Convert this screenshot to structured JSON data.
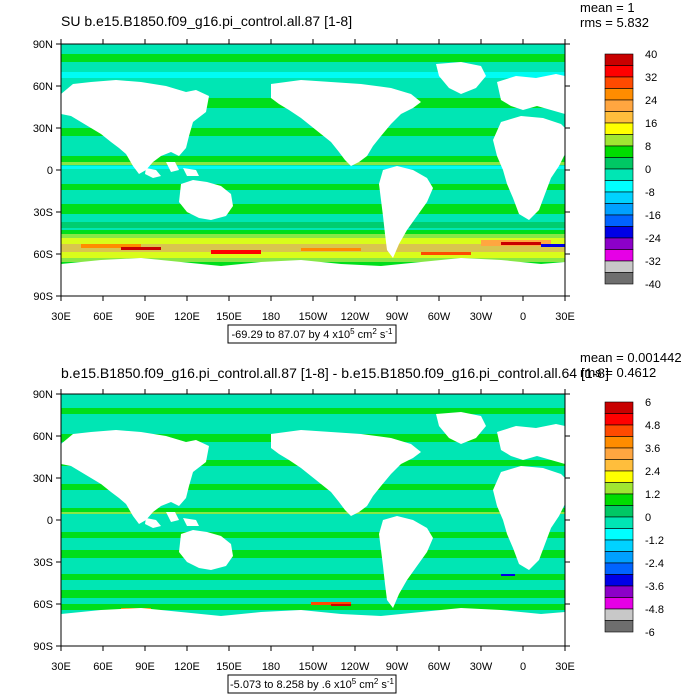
{
  "panels": [
    {
      "title": "SU b.e15.B1850.f09_g16.pi_control.all.87 [1-8]",
      "stats": {
        "mean": "mean = 1",
        "rms": "rms = 5.832"
      },
      "range_label_pre": "-69.29 to 87.07 by 4 x10",
      "range_exp": "5",
      "range_unit": " cm",
      "range_unit_exp": "2",
      "range_tail": " s",
      "range_tail_exp": "-1",
      "colorbar": {
        "labels": [
          "40",
          "32",
          "24",
          "16",
          "8",
          "0",
          "-8",
          "-16",
          "-24",
          "-32",
          "-40"
        ],
        "colors": [
          "#c80000",
          "#ff0000",
          "#ff4a00",
          "#ff8c00",
          "#ffa640",
          "#ffbe3c",
          "#ffff00",
          "#a0e632",
          "#00dc00",
          "#00c864",
          "#00e6b4",
          "#00ffff",
          "#00d2ff",
          "#00a0ff",
          "#0064ff",
          "#0000e6",
          "#8c00c8",
          "#e600e6",
          "#c8c8c8",
          "#6e6e6e"
        ]
      }
    },
    {
      "title": "b.e15.B1850.f09_g16.pi_control.all.87 [1-8] - b.e15.B1850.f09_g16.pi_control.all.64 [1-8]",
      "stats": {
        "mean": "mean = 0.001442",
        "rms": "rms = 0.4612"
      },
      "range_label_pre": "-5.073 to 8.258 by .6 x10",
      "range_exp": "5",
      "range_unit": " cm",
      "range_unit_exp": "2",
      "range_tail": " s",
      "range_tail_exp": "-1",
      "colorbar": {
        "labels": [
          "6",
          "4.8",
          "3.6",
          "2.4",
          "1.2",
          "0",
          "-1.2",
          "-2.4",
          "-3.6",
          "-4.8",
          "-6"
        ],
        "colors": [
          "#c80000",
          "#ff0000",
          "#ff4a00",
          "#ff8c00",
          "#ffa640",
          "#ffbe3c",
          "#ffff00",
          "#a0e632",
          "#00dc00",
          "#00c864",
          "#00e6b4",
          "#00ffff",
          "#00d2ff",
          "#00a0ff",
          "#0064ff",
          "#0000e6",
          "#8c00c8",
          "#e600e6",
          "#c8c8c8",
          "#6e6e6e"
        ]
      }
    }
  ],
  "lat_labels": [
    "90N",
    "60N",
    "30N",
    "0",
    "30S",
    "60S",
    "90S"
  ],
  "lon_labels": [
    "30E",
    "60E",
    "90E",
    "120E",
    "150E",
    "180",
    "150W",
    "120W",
    "90W",
    "60W",
    "30W",
    "0",
    "30E"
  ],
  "colors": {
    "land": "#ffffff",
    "ocean_base": "#00e6b4",
    "ocean_alt": "#00ffff",
    "ocean_green": "#00dc00"
  }
}
